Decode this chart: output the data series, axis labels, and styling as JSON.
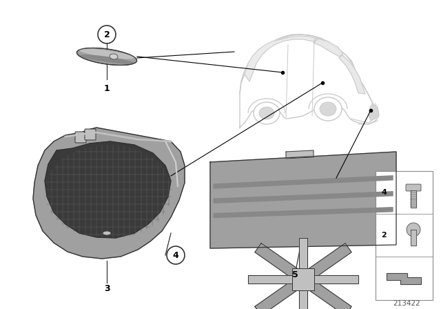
{
  "diagram_number": "213422",
  "background_color": "#ffffff",
  "line_color": "#333333",
  "part_gray_light": "#c0c0c0",
  "part_gray_mid": "#a0a0a0",
  "part_gray_dark": "#787878",
  "mesh_color": "#505050",
  "figsize": [
    6.4,
    4.48
  ],
  "dpi": 100,
  "car_line_color": "#c8c8c8",
  "leader_line_color": "#000000"
}
